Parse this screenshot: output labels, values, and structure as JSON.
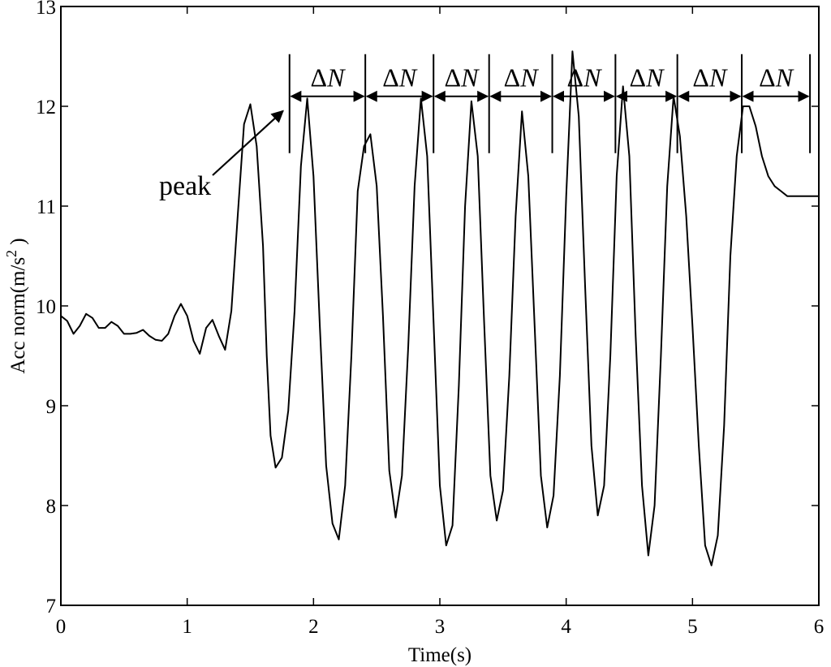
{
  "chart_data": {
    "type": "line",
    "title": "",
    "xlabel": "Time(s)",
    "ylabel": "Acc norm(m/s",
    "ylabel_sup": "2",
    "ylabel_close": " )",
    "xlim": [
      0,
      6
    ],
    "ylim": [
      7,
      13
    ],
    "x_ticks": [
      0,
      1,
      2,
      3,
      4,
      5,
      6
    ],
    "y_ticks": [
      7,
      8,
      9,
      10,
      11,
      12,
      13
    ],
    "x_tick_labels": [
      "0",
      "1",
      "2",
      "3",
      "4",
      "5",
      "6"
    ],
    "y_tick_labels": [
      "7",
      "8",
      "9",
      "10",
      "11",
      "12",
      "13"
    ],
    "grid": false,
    "series": [
      {
        "x": [
          0,
          0.05,
          0.1,
          0.15,
          0.2,
          0.25,
          0.3,
          0.35,
          0.4,
          0.45,
          0.5,
          0.55,
          0.6,
          0.65,
          0.7,
          0.75,
          0.8,
          0.85,
          0.9,
          0.95,
          1.0,
          1.05,
          1.1,
          1.15,
          1.2,
          1.25,
          1.3,
          1.35,
          1.4,
          1.45,
          1.5,
          1.55,
          1.6,
          1.63,
          1.66,
          1.7,
          1.75,
          1.8,
          1.85,
          1.9,
          1.95,
          2.0,
          2.05,
          2.1,
          2.15,
          2.2,
          2.25,
          2.3,
          2.35,
          2.4,
          2.45,
          2.5,
          2.55,
          2.6,
          2.65,
          2.7,
          2.75,
          2.8,
          2.85,
          2.9,
          2.95,
          3.0,
          3.05,
          3.1,
          3.15,
          3.2,
          3.25,
          3.3,
          3.35,
          3.4,
          3.45,
          3.5,
          3.55,
          3.6,
          3.65,
          3.7,
          3.75,
          3.8,
          3.85,
          3.9,
          3.95,
          4.0,
          4.05,
          4.1,
          4.15,
          4.2,
          4.25,
          4.3,
          4.35,
          4.4,
          4.45,
          4.5,
          4.55,
          4.6,
          4.65,
          4.7,
          4.75,
          4.8,
          4.85,
          4.9,
          4.95,
          5.0,
          5.05,
          5.1,
          5.15,
          5.2,
          5.25,
          5.3,
          5.35,
          5.4,
          5.45,
          5.5,
          5.55,
          5.6,
          5.65,
          5.7,
          5.75,
          5.8,
          5.85,
          5.9,
          5.95,
          6.0
        ],
        "values": [
          9.9,
          9.85,
          9.72,
          9.8,
          9.92,
          9.88,
          9.78,
          9.78,
          9.84,
          9.8,
          9.72,
          9.72,
          9.73,
          9.76,
          9.7,
          9.66,
          9.65,
          9.72,
          9.9,
          10.02,
          9.9,
          9.65,
          9.52,
          9.78,
          9.86,
          9.7,
          9.56,
          9.95,
          10.9,
          11.82,
          12.02,
          11.6,
          10.6,
          9.5,
          8.7,
          8.38,
          8.48,
          8.95,
          9.95,
          11.4,
          12.08,
          11.3,
          9.8,
          8.4,
          7.82,
          7.66,
          8.2,
          9.5,
          11.15,
          11.6,
          11.72,
          11.2,
          9.9,
          8.35,
          7.88,
          8.3,
          9.6,
          11.2,
          12.08,
          11.5,
          9.85,
          8.2,
          7.6,
          7.8,
          9.2,
          11.0,
          12.05,
          11.5,
          9.85,
          8.3,
          7.85,
          8.15,
          9.3,
          10.9,
          11.95,
          11.3,
          9.8,
          8.3,
          7.78,
          8.1,
          9.3,
          11.1,
          12.55,
          11.9,
          10.2,
          8.6,
          7.9,
          8.2,
          9.5,
          11.3,
          12.2,
          11.5,
          9.7,
          8.2,
          7.5,
          8.0,
          9.5,
          11.2,
          12.1,
          11.7,
          10.9,
          9.8,
          8.6,
          7.6,
          7.4,
          7.7,
          8.8,
          10.5,
          11.5,
          12.0,
          12.0,
          11.8,
          11.5,
          11.3,
          11.2,
          11.15,
          11.1,
          11.1,
          11.1,
          11.1,
          11.1,
          11.1
        ]
      }
    ],
    "annotations": {
      "peak_label": "peak",
      "delta_label_symbol": "Δ",
      "delta_label_var": "N",
      "peak_times": [
        1.81,
        2.41,
        2.95,
        3.39,
        3.89,
        4.39,
        4.88,
        5.39,
        5.93
      ],
      "peak_y": 12.1
    }
  }
}
